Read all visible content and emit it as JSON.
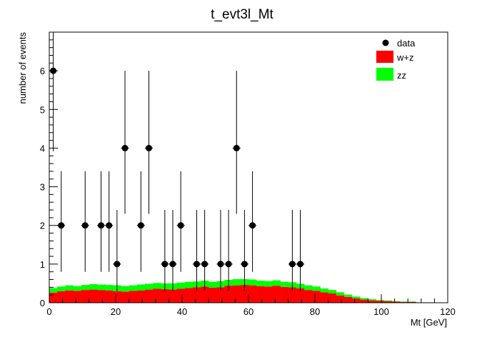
{
  "chart_data": {
    "type": "bar",
    "title": "t_evt3l_Mt",
    "xlabel": "Mt [GeV]",
    "ylabel": "number of events",
    "xlim": [
      0,
      120
    ],
    "ylim": [
      0,
      7
    ],
    "bin_width": 2.4,
    "x_ticks": [
      "0",
      "20",
      "40",
      "60",
      "80",
      "100",
      "120"
    ],
    "y_ticks": [
      "0",
      "1",
      "2",
      "3",
      "4",
      "5",
      "6"
    ],
    "stacked": true,
    "legend_position": "top-right",
    "series": [
      {
        "name": "w+z",
        "color": "#ff0000",
        "values": [
          0.26,
          0.3,
          0.32,
          0.31,
          0.33,
          0.34,
          0.33,
          0.32,
          0.3,
          0.29,
          0.31,
          0.32,
          0.34,
          0.36,
          0.35,
          0.34,
          0.36,
          0.38,
          0.4,
          0.42,
          0.39,
          0.4,
          0.44,
          0.45,
          0.46,
          0.45,
          0.43,
          0.42,
          0.44,
          0.41,
          0.4,
          0.37,
          0.33,
          0.31,
          0.27,
          0.24,
          0.19,
          0.15,
          0.11,
          0.08,
          0.06,
          0.05,
          0.04,
          0.03,
          0.02,
          0.02,
          0.01,
          0.01
        ]
      },
      {
        "name": "zz",
        "color": "#00ff00",
        "values": [
          0.12,
          0.12,
          0.13,
          0.12,
          0.13,
          0.14,
          0.14,
          0.14,
          0.15,
          0.14,
          0.14,
          0.15,
          0.15,
          0.15,
          0.15,
          0.16,
          0.16,
          0.16,
          0.15,
          0.15,
          0.15,
          0.16,
          0.15,
          0.16,
          0.15,
          0.15,
          0.14,
          0.14,
          0.14,
          0.13,
          0.13,
          0.12,
          0.12,
          0.11,
          0.1,
          0.09,
          0.08,
          0.06,
          0.05,
          0.04,
          0.03,
          0.02,
          0.02,
          0.01,
          0.01,
          0.01,
          0.0,
          0.0
        ]
      }
    ],
    "data_points": {
      "name": "data",
      "x": [
        1.2,
        3.6,
        10.8,
        15.6,
        18.0,
        20.4,
        22.8,
        27.6,
        30.0,
        34.8,
        37.2,
        39.6,
        44.4,
        46.8,
        51.6,
        54.0,
        56.4,
        58.8,
        61.2,
        73.2,
        75.6
      ],
      "y": [
        6,
        2,
        2,
        2,
        2,
        1,
        4,
        2,
        4,
        1,
        1,
        2,
        1,
        1,
        1,
        1,
        4,
        1,
        2,
        1,
        1
      ]
    }
  }
}
